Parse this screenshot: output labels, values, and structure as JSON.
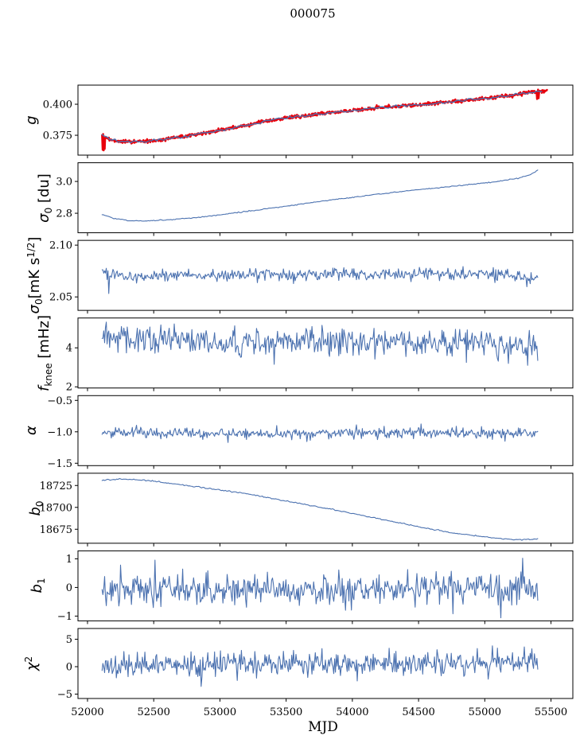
{
  "title": "000075",
  "xlabel": "MJD",
  "colors": {
    "series_blue": "#4c72b0",
    "series_red": "#e8000b",
    "axis": "#000000",
    "background": "#ffffff"
  },
  "chart_data": {
    "type": "line",
    "title": "000075",
    "xlabel": "MJD",
    "xlim": [
      51928,
      55665
    ],
    "x_data_range": [
      52110,
      55400
    ],
    "xticks": [
      {
        "v": 52000,
        "label": "52000"
      },
      {
        "v": 52500,
        "label": "52500"
      },
      {
        "v": 53000,
        "label": "53000"
      },
      {
        "v": 53500,
        "label": "53500"
      },
      {
        "v": 54000,
        "label": "54000"
      },
      {
        "v": 54500,
        "label": "54500"
      },
      {
        "v": 55000,
        "label": "55000"
      },
      {
        "v": 55500,
        "label": "55500"
      }
    ],
    "panels": [
      {
        "name": "g",
        "ylabel": "g",
        "label_parts": [
          {
            "t": "g",
            "s": "it"
          }
        ],
        "ylim": [
          0.359,
          0.4154
        ],
        "yticks": [
          {
            "v": 0.375,
            "label": "0.375"
          },
          {
            "v": 0.4,
            "label": "0.400"
          }
        ],
        "trend_anchors": [
          [
            52110,
            0.3748
          ],
          [
            52160,
            0.372
          ],
          [
            52230,
            0.3702
          ],
          [
            52320,
            0.3696
          ],
          [
            52430,
            0.37
          ],
          [
            52550,
            0.3714
          ],
          [
            52700,
            0.3736
          ],
          [
            52850,
            0.376
          ],
          [
            53000,
            0.379
          ],
          [
            53150,
            0.382
          ],
          [
            53300,
            0.3855
          ],
          [
            53450,
            0.388
          ],
          [
            53600,
            0.3903
          ],
          [
            53800,
            0.3928
          ],
          [
            54000,
            0.395
          ],
          [
            54200,
            0.3972
          ],
          [
            54400,
            0.3988
          ],
          [
            54600,
            0.4005
          ],
          [
            54800,
            0.4025
          ],
          [
            55000,
            0.4047
          ],
          [
            55150,
            0.4065
          ],
          [
            55300,
            0.4088
          ],
          [
            55400,
            0.4102
          ],
          [
            55470,
            0.411
          ]
        ],
        "series": [
          {
            "name": "g-raw-red",
            "color": "#e8000b",
            "lw": 2.4,
            "n": 850,
            "seed": 99,
            "sigma": 0.0007,
            "x1": 55470,
            "outliers": [
              [
                52112,
                0.3633
              ],
              [
                52116,
                0.376
              ],
              [
                52120,
                0.3628
              ],
              [
                52124,
                0.3725
              ],
              [
                52128,
                0.364
              ],
              [
                55396,
                0.4042
              ],
              [
                55402,
                0.4118
              ],
              [
                55408,
                0.4048
              ]
            ]
          },
          {
            "name": "g-smooth-blue",
            "color": "#4c72b0",
            "lw": 1.4,
            "n": 170,
            "seed": 12,
            "sigma": 0.0005,
            "x1": 55430
          }
        ]
      },
      {
        "name": "sigma0-du",
        "ylabel": "σ0 [du]",
        "label_parts": [
          {
            "t": "σ",
            "s": "it"
          },
          {
            "t": "0",
            "s": "sub"
          },
          {
            "t": " [du]",
            "s": ""
          }
        ],
        "ylim": [
          2.6775,
          3.1175
        ],
        "yticks": [
          {
            "v": 2.8,
            "label": "2.8"
          },
          {
            "v": 3.0,
            "label": "3.0"
          }
        ],
        "trend_anchors": [
          [
            52110,
            2.792
          ],
          [
            52200,
            2.768
          ],
          [
            52320,
            2.753
          ],
          [
            52450,
            2.752
          ],
          [
            52600,
            2.758
          ],
          [
            52750,
            2.768
          ],
          [
            52900,
            2.78
          ],
          [
            53100,
            2.8
          ],
          [
            53300,
            2.822
          ],
          [
            53500,
            2.845
          ],
          [
            53700,
            2.868
          ],
          [
            53900,
            2.89
          ],
          [
            54100,
            2.91
          ],
          [
            54300,
            2.93
          ],
          [
            54500,
            2.948
          ],
          [
            54700,
            2.965
          ],
          [
            54900,
            2.982
          ],
          [
            55100,
            3.0
          ],
          [
            55250,
            3.02
          ],
          [
            55350,
            3.045
          ],
          [
            55400,
            3.072
          ]
        ],
        "series": [
          {
            "name": "sigma0-du-line",
            "color": "#4c72b0",
            "lw": 1.1,
            "n": 330,
            "seed": 102,
            "sigma": 0.0015
          }
        ]
      },
      {
        "name": "sigma0-mks",
        "ylabel": "σ0[mK s1/2]",
        "label_parts": [
          {
            "t": "σ",
            "s": "it"
          },
          {
            "t": "0",
            "s": "sub"
          },
          {
            "t": "[mK s",
            "s": ""
          },
          {
            "t": "1/2",
            "s": "sup"
          },
          {
            "t": "]",
            "s": ""
          }
        ],
        "ylim": [
          2.037,
          2.1046
        ],
        "yticks": [
          {
            "v": 2.05,
            "label": "2.05"
          },
          {
            "v": 2.1,
            "label": "2.10"
          }
        ],
        "trend_anchors": [
          [
            52110,
            2.072
          ],
          [
            52400,
            2.069
          ],
          [
            52700,
            2.0712
          ],
          [
            53000,
            2.0705
          ],
          [
            53300,
            2.0725
          ],
          [
            53600,
            2.071
          ],
          [
            53900,
            2.072
          ],
          [
            54200,
            2.0712
          ],
          [
            54500,
            2.0722
          ],
          [
            54800,
            2.0718
          ],
          [
            55100,
            2.0722
          ],
          [
            55300,
            2.069
          ],
          [
            55400,
            2.0692
          ]
        ],
        "series": [
          {
            "name": "sigma0-mks-line",
            "color": "#4c72b0",
            "lw": 1.1,
            "n": 520,
            "seed": 103,
            "sigma": 0.0028,
            "outliers": [
              [
                52162,
                2.0533
              ],
              [
                55320,
                2.0598
              ]
            ]
          }
        ]
      },
      {
        "name": "fknee",
        "ylabel": "fknee [mHz]",
        "label_parts": [
          {
            "t": "f",
            "s": "it"
          },
          {
            "t": "knee",
            "s": "sub"
          },
          {
            "t": " [mHz]",
            "s": ""
          }
        ],
        "ylim": [
          1.94,
          5.53
        ],
        "yticks": [
          {
            "v": 2,
            "label": "2"
          },
          {
            "v": 4,
            "label": "4"
          }
        ],
        "trend_anchors": [
          [
            52110,
            4.45
          ],
          [
            52600,
            4.33
          ],
          [
            53200,
            4.3
          ],
          [
            53800,
            4.33
          ],
          [
            54400,
            4.28
          ],
          [
            55000,
            4.3
          ],
          [
            55400,
            4.05
          ]
        ],
        "series": [
          {
            "name": "fknee-line",
            "color": "#4c72b0",
            "lw": 1.1,
            "n": 520,
            "seed": 104,
            "sigma": 0.34,
            "outliers": [
              [
                52140,
                5.32
              ],
              [
                54860,
                3.25
              ],
              [
                55180,
                3.2
              ],
              [
                55400,
                3.35
              ]
            ]
          }
        ]
      },
      {
        "name": "alpha",
        "ylabel": "α",
        "label_parts": [
          {
            "t": "α",
            "s": "it"
          }
        ],
        "ylim": [
          -1.538,
          -0.424
        ],
        "yticks": [
          {
            "v": -1.5,
            "label": "−1.5"
          },
          {
            "v": -1.0,
            "label": "−1.0"
          },
          {
            "v": -0.5,
            "label": "−0.5"
          }
        ],
        "trend_anchors": [
          [
            52110,
            -1.01
          ],
          [
            53000,
            -1.02
          ],
          [
            54000,
            -1.02
          ],
          [
            55400,
            -1.02
          ]
        ],
        "series": [
          {
            "name": "alpha-line",
            "color": "#4c72b0",
            "lw": 1.1,
            "n": 520,
            "seed": 105,
            "sigma": 0.042,
            "outliers": [
              [
                53060,
                -1.17
              ],
              [
                54520,
                -0.875
              ],
              [
                55150,
                -1.15
              ]
            ]
          }
        ]
      },
      {
        "name": "b0",
        "ylabel": "b0",
        "label_parts": [
          {
            "t": "b",
            "s": "it"
          },
          {
            "t": "0",
            "s": "sub"
          }
        ],
        "ylim": [
          18659,
          18739
        ],
        "yticks": [
          {
            "v": 18675,
            "label": "18675"
          },
          {
            "v": 18700,
            "label": "18700"
          },
          {
            "v": 18725,
            "label": "18725"
          }
        ],
        "trend_anchors": [
          [
            52110,
            18731
          ],
          [
            52250,
            18732.5
          ],
          [
            52400,
            18731.5
          ],
          [
            52600,
            18728
          ],
          [
            52800,
            18724
          ],
          [
            53000,
            18720
          ],
          [
            53200,
            18715.5
          ],
          [
            53400,
            18710
          ],
          [
            53600,
            18704.5
          ],
          [
            53800,
            18699
          ],
          [
            54000,
            18693
          ],
          [
            54200,
            18687
          ],
          [
            54400,
            18681
          ],
          [
            54600,
            18675
          ],
          [
            54750,
            18671
          ],
          [
            54900,
            18668
          ],
          [
            55050,
            18665.5
          ],
          [
            55150,
            18664
          ],
          [
            55250,
            18663
          ],
          [
            55350,
            18663.5
          ],
          [
            55400,
            18664
          ]
        ],
        "series": [
          {
            "name": "b0-line",
            "color": "#4c72b0",
            "lw": 1.1,
            "n": 330,
            "seed": 106,
            "sigma": 0.35
          }
        ]
      },
      {
        "name": "b1",
        "ylabel": "b1",
        "label_parts": [
          {
            "t": "b",
            "s": "it"
          },
          {
            "t": "1",
            "s": "sub"
          }
        ],
        "ylim": [
          -1.167,
          1.278
        ],
        "yticks": [
          {
            "v": -1,
            "label": "−1"
          },
          {
            "v": 0,
            "label": "0"
          },
          {
            "v": 1,
            "label": "1"
          }
        ],
        "trend_anchors": [
          [
            52110,
            -0.02
          ],
          [
            53000,
            -0.06
          ],
          [
            54000,
            -0.03
          ],
          [
            55400,
            -0.04
          ]
        ],
        "series": [
          {
            "name": "b1-line",
            "color": "#4c72b0",
            "lw": 1.1,
            "n": 520,
            "seed": 107,
            "sigma": 0.27,
            "outliers": [
              [
                55120,
                -1.06
              ],
              [
                55285,
                1.02
              ],
              [
                52250,
                0.78
              ],
              [
                54760,
                -0.92
              ]
            ]
          }
        ]
      },
      {
        "name": "chi2",
        "ylabel": "χ2",
        "label_parts": [
          {
            "t": "χ",
            "s": "it"
          },
          {
            "t": "2",
            "s": "sup"
          }
        ],
        "ylim": [
          -5.8,
          6.96
        ],
        "yticks": [
          {
            "v": -5,
            "label": "−5"
          },
          {
            "v": 0,
            "label": "0"
          },
          {
            "v": 5,
            "label": "5"
          }
        ],
        "trend_anchors": [
          [
            52110,
            0.2
          ],
          [
            52600,
            0.25
          ],
          [
            53200,
            0.45
          ],
          [
            53800,
            0.55
          ],
          [
            54400,
            0.6
          ],
          [
            54900,
            0.7
          ],
          [
            55400,
            0.8
          ]
        ],
        "series": [
          {
            "name": "chi2-line",
            "color": "#4c72b0",
            "lw": 1.1,
            "n": 520,
            "seed": 108,
            "sigma": 1.05,
            "outliers": [
              [
                52860,
                -3.6
              ],
              [
                53480,
                2.8
              ],
              [
                54040,
                -2.6
              ],
              [
                54640,
                3.1
              ],
              [
                55060,
                3.8
              ],
              [
                55300,
                3.6
              ]
            ]
          }
        ]
      }
    ]
  }
}
